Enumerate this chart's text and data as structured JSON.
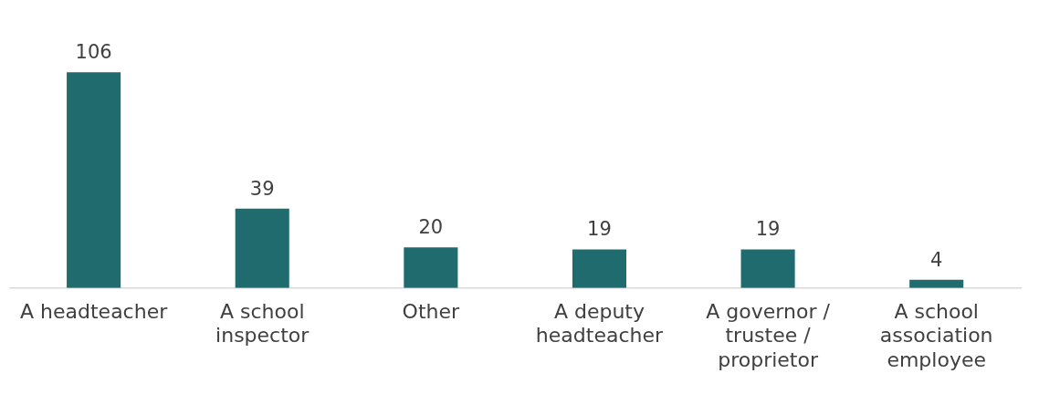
{
  "chart_data": {
    "type": "bar",
    "categories": [
      "A headteacher",
      "A school inspector",
      "Other",
      "A deputy headteacher",
      "A governor / trustee / proprietor",
      "A school association employee"
    ],
    "values": [
      106,
      39,
      20,
      19,
      19,
      4
    ],
    "color": "#1f6b6e",
    "data_labels": true,
    "grid": false,
    "legend": false
  }
}
